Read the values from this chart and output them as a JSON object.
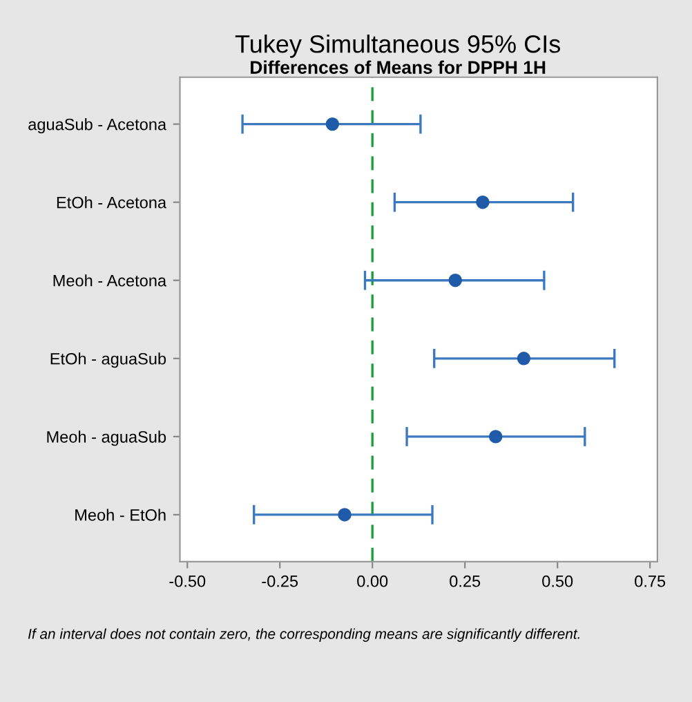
{
  "chart_data": {
    "type": "scatter",
    "title": "Tukey Simultaneous 95% CIs",
    "subtitle": "Differences of Means for DPPH 1H",
    "orientation": "horizontal",
    "categories": [
      "aguaSub - Acetona",
      "EtOh - Acetona",
      "Meoh - Acetona",
      "EtOh - aguaSub",
      "Meoh - aguaSub",
      "Meoh - EtOh"
    ],
    "values": [
      -0.108,
      0.298,
      0.224,
      0.409,
      0.333,
      -0.075
    ],
    "errors": [
      [
        -0.351,
        0.13
      ],
      [
        0.06,
        0.542
      ],
      [
        -0.02,
        0.464
      ],
      [
        0.167,
        0.654
      ],
      [
        0.093,
        0.574
      ],
      [
        -0.32,
        0.162
      ]
    ],
    "color": "#1f5ba8",
    "marker": "circle",
    "grid": false,
    "legend": false,
    "xlim": [
      -0.52,
      0.77
    ],
    "xticks": [
      {
        "value": -0.5,
        "label": "-0.50"
      },
      {
        "value": -0.25,
        "label": "-0.25"
      },
      {
        "value": 0,
        "label": "0.00"
      },
      {
        "value": 0.25,
        "label": "0.25"
      },
      {
        "value": 0.5,
        "label": "0.50"
      },
      {
        "value": 0.75,
        "label": "0.75"
      }
    ],
    "ref_lines": [
      {
        "axis": "x",
        "value": 0,
        "label": null,
        "color": "#1aa03a",
        "line_style": "dashed"
      }
    ],
    "annotations": [
      "If an interval does not contain zero, the corresponding means are significantly different."
    ]
  }
}
